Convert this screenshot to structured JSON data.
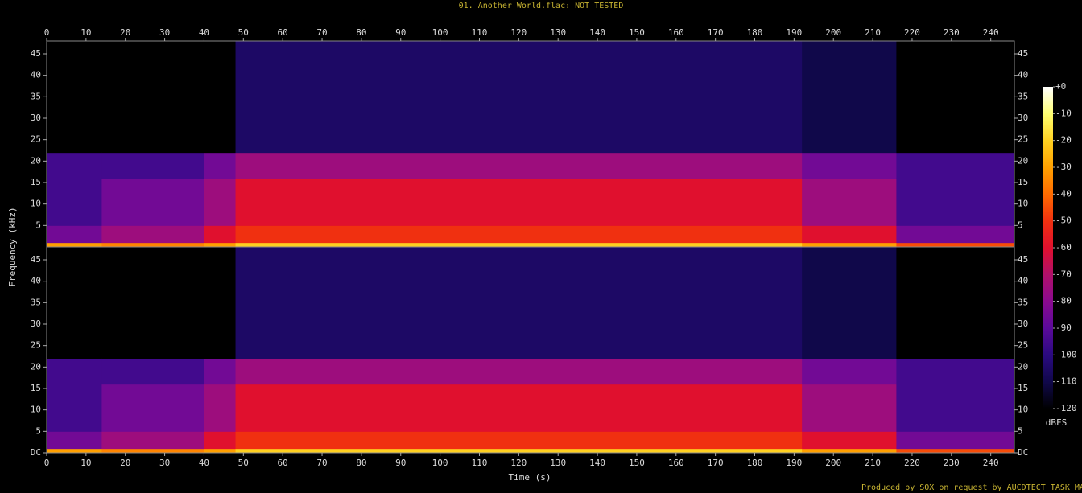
{
  "chart_data": {
    "type": "spectrogram",
    "title": "01. Another World.flac: NOT TESTED",
    "footer": "Produced by SOX on request by AUCDTECT TASK MANAGER",
    "xlabel": "Time (s)",
    "ylabel": "Frequency (kHz)",
    "xlim": [
      0,
      246
    ],
    "xticks": [
      0,
      10,
      20,
      30,
      40,
      50,
      60,
      70,
      80,
      90,
      100,
      110,
      120,
      130,
      140,
      150,
      160,
      170,
      180,
      190,
      200,
      210,
      220,
      230,
      240
    ],
    "ylim": [
      0,
      48
    ],
    "yticks": [
      {
        "value": 0,
        "label": "DC"
      },
      5,
      10,
      15,
      20,
      25,
      30,
      35,
      40,
      45
    ],
    "time_bins": [
      0,
      14,
      40,
      48,
      192,
      216,
      246
    ],
    "freq_bins": [
      0,
      1,
      5,
      16,
      22,
      48
    ],
    "channels": [
      {
        "values": [
          [
            -30,
            -85,
            -95,
            -95,
            -120
          ],
          [
            -35,
            -75,
            -85,
            -95,
            -120
          ],
          [
            -30,
            -60,
            -75,
            -85,
            -120
          ],
          [
            -20,
            -50,
            -60,
            -75,
            -105
          ],
          [
            -30,
            -60,
            -75,
            -85,
            -110
          ],
          [
            -45,
            -85,
            -95,
            -95,
            -120
          ]
        ]
      },
      {
        "values": [
          [
            -30,
            -85,
            -95,
            -95,
            -120
          ],
          [
            -35,
            -75,
            -85,
            -95,
            -120
          ],
          [
            -30,
            -60,
            -75,
            -85,
            -120
          ],
          [
            -20,
            -50,
            -60,
            -75,
            -105
          ],
          [
            -30,
            -60,
            -75,
            -85,
            -110
          ],
          [
            -45,
            -85,
            -95,
            -95,
            -120
          ]
        ]
      }
    ],
    "colorbar_label": "dBFS",
    "clim": [
      -120,
      0
    ],
    "cticks": [
      {
        "value": 0,
        "label": "+0"
      },
      -10,
      -20,
      -30,
      -40,
      -50,
      -60,
      -70,
      -80,
      -90,
      -100,
      -110,
      -120
    ],
    "colorscale": [
      "#ffffff",
      "#ffff70",
      "#ffd020",
      "#ffa000",
      "#ff6a00",
      "#f03010",
      "#e0102e",
      "#b0106a",
      "#8a0a90",
      "#5a0a9a",
      "#2a0a80",
      "#10084a",
      "#000000"
    ]
  }
}
